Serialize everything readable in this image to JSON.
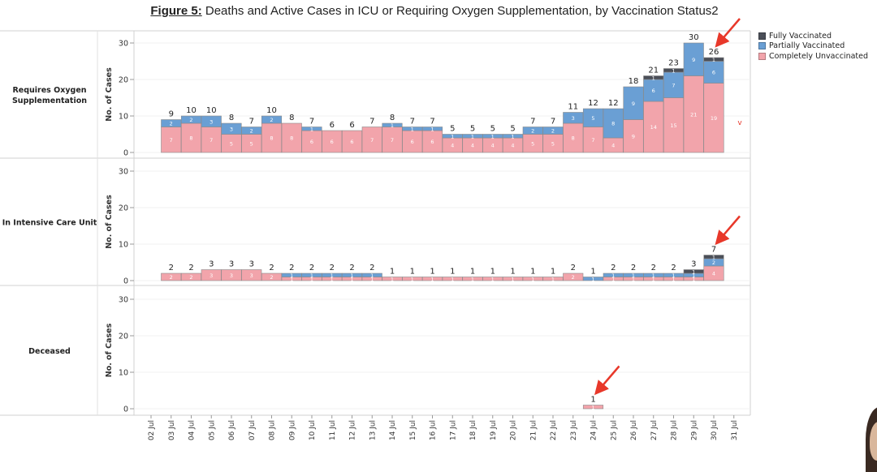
{
  "figure": {
    "title_lead": "Figure 5:",
    "title_rest": " Deaths and Active Cases in ICU or Requiring Oxygen Supplementation, by Vaccination Status2"
  },
  "colors": {
    "fully": "#4b4f58",
    "partially": "#6a9fd4",
    "unvaccinated": "#f2a4ab",
    "outline": "#8a8a8a",
    "arrow": "#e8382a"
  },
  "legend": [
    {
      "label": "Fully Vaccinated",
      "color": "#4b4f58"
    },
    {
      "label": "Partially Vaccinated",
      "color": "#6a9fd4"
    },
    {
      "label": "Completely Unvaccinated",
      "color": "#f2a4ab"
    }
  ],
  "chart_data": {
    "type": "bar",
    "stacked": true,
    "categories": [
      "02 Jul",
      "03 Jul",
      "04 Jul",
      "05 Jul",
      "06 Jul",
      "07 Jul",
      "08 Jul",
      "09 Jul",
      "10 Jul",
      "11 Jul",
      "12 Jul",
      "13 Jul",
      "14 Jul",
      "15 Jul",
      "16 Jul",
      "17 Jul",
      "18 Jul",
      "19 Jul",
      "20 Jul",
      "21 Jul",
      "22 Jul",
      "23 Jul",
      "24 Jul",
      "25 Jul",
      "26 Jul",
      "27 Jul",
      "28 Jul",
      "29 Jul",
      "30 Jul",
      "31 Jul"
    ],
    "ylabel": "No. of Cases",
    "yticks": [
      0,
      10,
      20,
      30
    ],
    "ylim": [
      0,
      32
    ],
    "grid": true,
    "legend_position": "top-right",
    "panels": [
      {
        "title": "Requires Oxygen\nSupplementation",
        "series": [
          {
            "name": "Completely Unvaccinated",
            "values": [
              null,
              7,
              8,
              7,
              5,
              5,
              8,
              8,
              6,
              6,
              6,
              7,
              7,
              6,
              6,
              4,
              4,
              4,
              4,
              5,
              5,
              8,
              7,
              4,
              9,
              14,
              15,
              21,
              19,
              null
            ]
          },
          {
            "name": "Partially Vaccinated",
            "values": [
              null,
              2,
              2,
              3,
              3,
              2,
              2,
              0,
              1,
              0,
              0,
              0,
              1,
              1,
              1,
              1,
              1,
              1,
              1,
              2,
              2,
              3,
              5,
              8,
              9,
              6,
              7,
              9,
              6,
              null
            ]
          },
          {
            "name": "Fully Vaccinated",
            "values": [
              null,
              0,
              0,
              0,
              0,
              0,
              0,
              0,
              0,
              0,
              0,
              0,
              0,
              0,
              0,
              0,
              0,
              0,
              0,
              0,
              0,
              0,
              0,
              0,
              0,
              1,
              1,
              0,
              1,
              null
            ]
          }
        ],
        "totals": [
          null,
          9,
          10,
          10,
          8,
          7,
          10,
          8,
          7,
          6,
          6,
          7,
          8,
          7,
          7,
          5,
          5,
          5,
          5,
          7,
          7,
          11,
          12,
          12,
          18,
          21,
          23,
          30,
          26,
          null
        ]
      },
      {
        "title": "In Intensive Care Unit",
        "series": [
          {
            "name": "Completely Unvaccinated",
            "values": [
              null,
              2,
              2,
              3,
              3,
              3,
              2,
              1,
              1,
              1,
              1,
              1,
              1,
              1,
              1,
              1,
              1,
              1,
              1,
              1,
              1,
              2,
              0,
              1,
              1,
              1,
              1,
              1,
              4,
              null
            ]
          },
          {
            "name": "Partially Vaccinated",
            "values": [
              null,
              0,
              0,
              0,
              0,
              0,
              0,
              1,
              1,
              1,
              1,
              1,
              0,
              0,
              0,
              0,
              0,
              0,
              0,
              0,
              0,
              0,
              1,
              1,
              1,
              1,
              1,
              1,
              2,
              null
            ]
          },
          {
            "name": "Fully Vaccinated",
            "values": [
              null,
              0,
              0,
              0,
              0,
              0,
              0,
              0,
              0,
              0,
              0,
              0,
              0,
              0,
              0,
              0,
              0,
              0,
              0,
              0,
              0,
              0,
              0,
              0,
              0,
              0,
              0,
              1,
              1,
              null
            ]
          }
        ],
        "totals": [
          null,
          2,
          2,
          3,
          3,
          3,
          2,
          2,
          2,
          2,
          2,
          2,
          1,
          1,
          1,
          1,
          1,
          1,
          1,
          1,
          1,
          2,
          1,
          2,
          2,
          2,
          2,
          3,
          7,
          null
        ]
      },
      {
        "title": "Deceased",
        "series": [
          {
            "name": "Completely Unvaccinated",
            "values": [
              null,
              null,
              null,
              null,
              null,
              null,
              null,
              null,
              null,
              null,
              null,
              null,
              null,
              null,
              null,
              null,
              null,
              null,
              null,
              null,
              null,
              null,
              1,
              null,
              null,
              null,
              null,
              null,
              null,
              null
            ]
          },
          {
            "name": "Partially Vaccinated",
            "values": [
              null,
              null,
              null,
              null,
              null,
              null,
              null,
              null,
              null,
              null,
              null,
              null,
              null,
              null,
              null,
              null,
              null,
              null,
              null,
              null,
              null,
              null,
              0,
              null,
              null,
              null,
              null,
              null,
              null,
              null
            ]
          },
          {
            "name": "Fully Vaccinated",
            "values": [
              null,
              null,
              null,
              null,
              null,
              null,
              null,
              null,
              null,
              null,
              null,
              null,
              null,
              null,
              null,
              null,
              null,
              null,
              null,
              null,
              null,
              null,
              0,
              null,
              null,
              null,
              null,
              null,
              null,
              null
            ]
          }
        ],
        "totals": [
          null,
          null,
          null,
          null,
          null,
          null,
          null,
          null,
          null,
          null,
          null,
          null,
          null,
          null,
          null,
          null,
          null,
          null,
          null,
          null,
          null,
          null,
          1,
          null,
          null,
          null,
          null,
          null,
          null,
          null
        ]
      }
    ],
    "annotations": [
      {
        "type": "arrow",
        "panel": 0,
        "target": "30 Jul"
      },
      {
        "type": "arrow",
        "panel": 1,
        "target": "30 Jul"
      },
      {
        "type": "arrow",
        "panel": 2,
        "target": "24 Jul"
      }
    ]
  }
}
